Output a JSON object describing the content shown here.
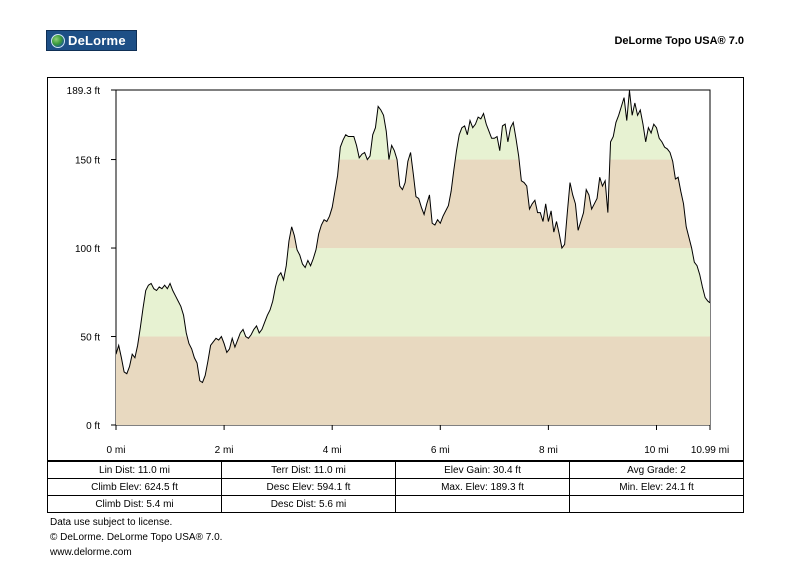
{
  "header": {
    "logo_text": "DeLorme",
    "logo_icon": "globe-icon",
    "product": "DeLorme Topo USA® 7.0"
  },
  "chart_data": {
    "type": "area",
    "title": "",
    "xlabel": "",
    "ylabel": "",
    "xlim": [
      0,
      10.99
    ],
    "ylim": [
      0,
      189.3
    ],
    "y_ticks": [
      0,
      50,
      100,
      150,
      189.3
    ],
    "y_tick_labels": [
      "0 ft",
      "50 ft",
      "100 ft",
      "150 ft",
      "189.3 ft"
    ],
    "x_ticks": [
      0,
      2,
      4,
      6,
      8,
      10,
      10.99
    ],
    "x_tick_labels": [
      "0 mi",
      "2 mi",
      "4 mi",
      "6 mi",
      "8 mi",
      "10 mi",
      "10.99 mi"
    ],
    "band_colors": [
      "#e8d9c0",
      "#e7f2d2"
    ],
    "line_color": "#000000",
    "series": [
      {
        "x": [
          0.0,
          0.05,
          0.1,
          0.15,
          0.2,
          0.25,
          0.3,
          0.35,
          0.4,
          0.45,
          0.5,
          0.55,
          0.6,
          0.65,
          0.7,
          0.75,
          0.8,
          0.85,
          0.9,
          0.95,
          1.0,
          1.05,
          1.1,
          1.15,
          1.2,
          1.25,
          1.3,
          1.35,
          1.4,
          1.45,
          1.5,
          1.55,
          1.6,
          1.65,
          1.7,
          1.75,
          1.8,
          1.85,
          1.9,
          1.95,
          2.0,
          2.05,
          2.1,
          2.15,
          2.2,
          2.25,
          2.3,
          2.35,
          2.4,
          2.45,
          2.5,
          2.55,
          2.6,
          2.65,
          2.7,
          2.75,
          2.8,
          2.85,
          2.9,
          2.95,
          3.0,
          3.05,
          3.1,
          3.15,
          3.2,
          3.25,
          3.3,
          3.35,
          3.4,
          3.45,
          3.5,
          3.55,
          3.6,
          3.65,
          3.7,
          3.75,
          3.8,
          3.85,
          3.9,
          3.95,
          4.0,
          4.05,
          4.1,
          4.15,
          4.2,
          4.25,
          4.3,
          4.35,
          4.4,
          4.45,
          4.5,
          4.55,
          4.6,
          4.65,
          4.7,
          4.75,
          4.8,
          4.85,
          4.9,
          4.95,
          5.0,
          5.05,
          5.1,
          5.15,
          5.2,
          5.25,
          5.3,
          5.35,
          5.4,
          5.45,
          5.5,
          5.55,
          5.6,
          5.65,
          5.7,
          5.75,
          5.8,
          5.85,
          5.9,
          5.95,
          6.0,
          6.05,
          6.1,
          6.15,
          6.2,
          6.25,
          6.3,
          6.35,
          6.4,
          6.45,
          6.5,
          6.55,
          6.6,
          6.65,
          6.7,
          6.75,
          6.8,
          6.85,
          6.9,
          6.95,
          7.0,
          7.05,
          7.1,
          7.15,
          7.2,
          7.25,
          7.3,
          7.35,
          7.4,
          7.45,
          7.5,
          7.55,
          7.6,
          7.65,
          7.7,
          7.75,
          7.8,
          7.85,
          7.9,
          7.95,
          8.0,
          8.05,
          8.1,
          8.15,
          8.2,
          8.25,
          8.3,
          8.35,
          8.4,
          8.45,
          8.5,
          8.55,
          8.6,
          8.65,
          8.7,
          8.75,
          8.8,
          8.85,
          8.9,
          8.95,
          9.0,
          9.05,
          9.1,
          9.15,
          9.2,
          9.25,
          9.3,
          9.35,
          9.4,
          9.45,
          9.5,
          9.55,
          9.6,
          9.65,
          9.7,
          9.75,
          9.8,
          9.85,
          9.9,
          9.95,
          10.0,
          10.05,
          10.1,
          10.15,
          10.2,
          10.25,
          10.3,
          10.35,
          10.4,
          10.45,
          10.5,
          10.55,
          10.6,
          10.65,
          10.7,
          10.75,
          10.8,
          10.85,
          10.9,
          10.95,
          10.99
        ],
        "values": [
          40,
          45,
          38,
          30,
          29,
          33,
          40,
          38,
          45,
          55,
          66,
          76,
          79,
          80,
          77,
          76,
          78,
          77,
          79,
          77,
          80,
          76,
          73,
          70,
          67,
          62,
          52,
          46,
          43,
          38,
          35,
          25,
          24,
          28,
          36,
          45,
          47,
          49,
          48,
          50,
          46,
          41,
          43,
          49,
          44,
          48,
          52,
          54,
          50,
          49,
          51,
          54,
          56,
          52,
          54,
          58,
          62,
          65,
          70,
          78,
          84,
          86,
          82,
          90,
          104,
          112,
          107,
          99,
          96,
          91,
          89,
          93,
          90,
          94,
          99,
          108,
          113,
          116,
          115,
          118,
          123,
          132,
          141,
          157,
          161,
          164,
          163,
          163,
          163,
          158,
          151,
          153,
          154,
          150,
          152,
          164,
          168,
          180,
          178,
          175,
          166,
          150,
          158,
          155,
          150,
          135,
          133,
          137,
          149,
          154,
          142,
          129,
          128,
          123,
          119,
          125,
          130,
          114,
          113,
          116,
          114,
          118,
          121,
          124,
          132,
          144,
          155,
          164,
          168,
          169,
          164,
          172,
          168,
          170,
          174,
          173,
          176,
          170,
          166,
          162,
          162,
          163,
          155,
          169,
          170,
          160,
          168,
          171,
          162,
          152,
          138,
          137,
          135,
          122,
          125,
          127,
          120,
          120,
          115,
          125,
          115,
          121,
          109,
          115,
          108,
          100,
          102,
          120,
          137,
          130,
          125,
          110,
          115,
          120,
          133,
          130,
          122,
          125,
          128,
          140,
          135,
          138,
          120,
          160,
          163,
          171,
          175,
          180,
          185,
          172,
          189,
          175,
          182,
          175,
          178,
          170,
          160,
          168,
          165,
          170,
          168,
          162,
          160,
          157,
          156,
          154,
          149,
          139,
          140,
          132,
          125,
          112,
          106,
          100,
          92,
          90,
          85,
          78,
          72,
          70,
          69
        ]
      }
    ]
  },
  "stats": [
    [
      "Lin Dist:  11.0 mi",
      "Terr Dist:  11.0 mi",
      "Elev Gain:  30.4 ft",
      "Avg Grade:  2"
    ],
    [
      "Climb Elev:  624.5 ft",
      "Desc Elev:  594.1 ft",
      "Max. Elev:  189.3 ft",
      "Min. Elev:  24.1 ft"
    ],
    [
      "Climb Dist:  5.4 mi",
      "Desc Dist:  5.6 mi",
      "",
      ""
    ]
  ],
  "footer": {
    "line1": "Data use subject to license.",
    "line2": "© DeLorme. DeLorme Topo USA® 7.0.",
    "line3": "www.delorme.com"
  }
}
